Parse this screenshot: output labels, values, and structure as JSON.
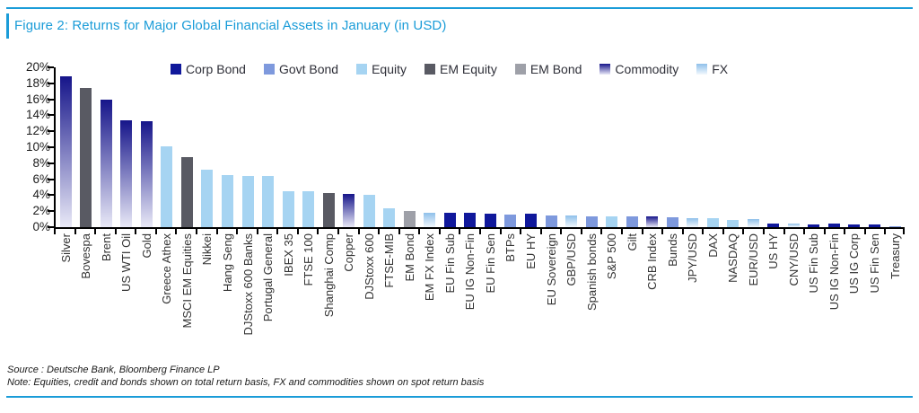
{
  "figure": {
    "title": "Figure 2: Returns for Major Global Financial Assets in January (in USD)",
    "source": "Source : Deutsche Bank, Bloomberg Finance LP",
    "note": "Note: Equities, credit and bonds shown on total return basis, FX and commodities shown on spot return basis",
    "accent_color": "#1A9CD8"
  },
  "chart_data": {
    "type": "bar",
    "title": "Figure 2: Returns for Major Global Financial Assets in January (in USD)",
    "xlabel": "",
    "ylabel": "",
    "ylim": [
      0,
      20
    ],
    "y_step": 2,
    "y_ticks": [
      "20%",
      "18%",
      "16%",
      "14%",
      "12%",
      "10%",
      "8%",
      "6%",
      "4%",
      "2%",
      "0%"
    ],
    "grid": false,
    "legend_position": "top",
    "legend": [
      {
        "name": "Corp Bond",
        "color": "#10189B",
        "gradient": false,
        "color_bottom": null
      },
      {
        "name": "Govt Bond",
        "color": "#7E99DD",
        "gradient": false,
        "color_bottom": null
      },
      {
        "name": "Equity",
        "color": "#A6D4F2",
        "gradient": false,
        "color_bottom": null
      },
      {
        "name": "EM Equity",
        "color": "#595A63",
        "gradient": false,
        "color_bottom": null
      },
      {
        "name": "EM Bond",
        "color": "#9EA0A8",
        "gradient": false,
        "color_bottom": null
      },
      {
        "name": "Commodity",
        "color": "#16158A",
        "gradient": true,
        "color_bottom": "#E9E9F7"
      },
      {
        "name": "FX",
        "color": "#8FC0EA",
        "gradient": true,
        "color_bottom": "#F2F8FD"
      }
    ],
    "bars": [
      {
        "label": "Silver",
        "value": 18.9,
        "category": "Commodity"
      },
      {
        "label": "Bovespa",
        "value": 17.4,
        "category": "EM Equity"
      },
      {
        "label": "Brent",
        "value": 16.0,
        "category": "Commodity"
      },
      {
        "label": "US WTI Oil",
        "value": 13.4,
        "category": "Commodity"
      },
      {
        "label": "Gold",
        "value": 13.3,
        "category": "Commodity"
      },
      {
        "label": "Greece Athex",
        "value": 10.1,
        "category": "Equity"
      },
      {
        "label": "MSCI EM Equities",
        "value": 8.8,
        "category": "EM Equity"
      },
      {
        "label": "Nikkei",
        "value": 7.2,
        "category": "Equity"
      },
      {
        "label": "Hang Seng",
        "value": 6.5,
        "category": "Equity"
      },
      {
        "label": "DJStoxx 600 Banks",
        "value": 6.4,
        "category": "Equity"
      },
      {
        "label": "Portugal General",
        "value": 6.4,
        "category": "Equity"
      },
      {
        "label": "IBEX 35",
        "value": 4.5,
        "category": "Equity"
      },
      {
        "label": "FTSE 100",
        "value": 4.5,
        "category": "Equity"
      },
      {
        "label": "Shanghai Comp",
        "value": 4.3,
        "category": "EM Equity"
      },
      {
        "label": "Copper",
        "value": 4.2,
        "category": "Commodity"
      },
      {
        "label": "DJStoxx 600",
        "value": 4.1,
        "category": "Equity"
      },
      {
        "label": "FTSE-MIB",
        "value": 2.4,
        "category": "Equity"
      },
      {
        "label": "EM Bond",
        "value": 2.0,
        "category": "EM Bond"
      },
      {
        "label": "EM FX Index",
        "value": 1.85,
        "category": "FX"
      },
      {
        "label": "EU Fin Sub",
        "value": 1.8,
        "category": "Corp Bond"
      },
      {
        "label": "EU IG Non-Fin",
        "value": 1.75,
        "category": "Corp Bond"
      },
      {
        "label": "EU Fin Sen",
        "value": 1.7,
        "category": "Corp Bond"
      },
      {
        "label": "BTPs",
        "value": 1.6,
        "category": "Govt Bond"
      },
      {
        "label": "EU HY",
        "value": 1.65,
        "category": "Corp Bond"
      },
      {
        "label": "EU Sovereign",
        "value": 1.5,
        "category": "Govt Bond"
      },
      {
        "label": "GBP/USD",
        "value": 1.45,
        "category": "FX"
      },
      {
        "label": "Spanish bonds",
        "value": 1.4,
        "category": "Govt Bond"
      },
      {
        "label": "S&P 500",
        "value": 1.35,
        "category": "Equity"
      },
      {
        "label": "Gilt",
        "value": 1.3,
        "category": "Govt Bond"
      },
      {
        "label": "CRB Index",
        "value": 1.3,
        "category": "Commodity"
      },
      {
        "label": "Bunds",
        "value": 1.2,
        "category": "Govt Bond"
      },
      {
        "label": "JPY/USD",
        "value": 1.15,
        "category": "FX"
      },
      {
        "label": "DAX",
        "value": 1.1,
        "category": "Equity"
      },
      {
        "label": "NASDAQ",
        "value": 0.95,
        "category": "Equity"
      },
      {
        "label": "EUR/USD",
        "value": 1.0,
        "category": "FX"
      },
      {
        "label": "US HY",
        "value": 0.5,
        "category": "Corp Bond"
      },
      {
        "label": "CNY/USD",
        "value": 0.45,
        "category": "FX"
      },
      {
        "label": "US Fin Sub",
        "value": 0.35,
        "category": "Corp Bond"
      },
      {
        "label": "US IG Non-Fin",
        "value": 0.4,
        "category": "Corp Bond"
      },
      {
        "label": "US IG Corp",
        "value": 0.35,
        "category": "Corp Bond"
      },
      {
        "label": "US Fin Sen",
        "value": 0.3,
        "category": "Corp Bond"
      },
      {
        "label": "Treasury",
        "value": 0.1,
        "category": "Govt Bond"
      }
    ]
  }
}
